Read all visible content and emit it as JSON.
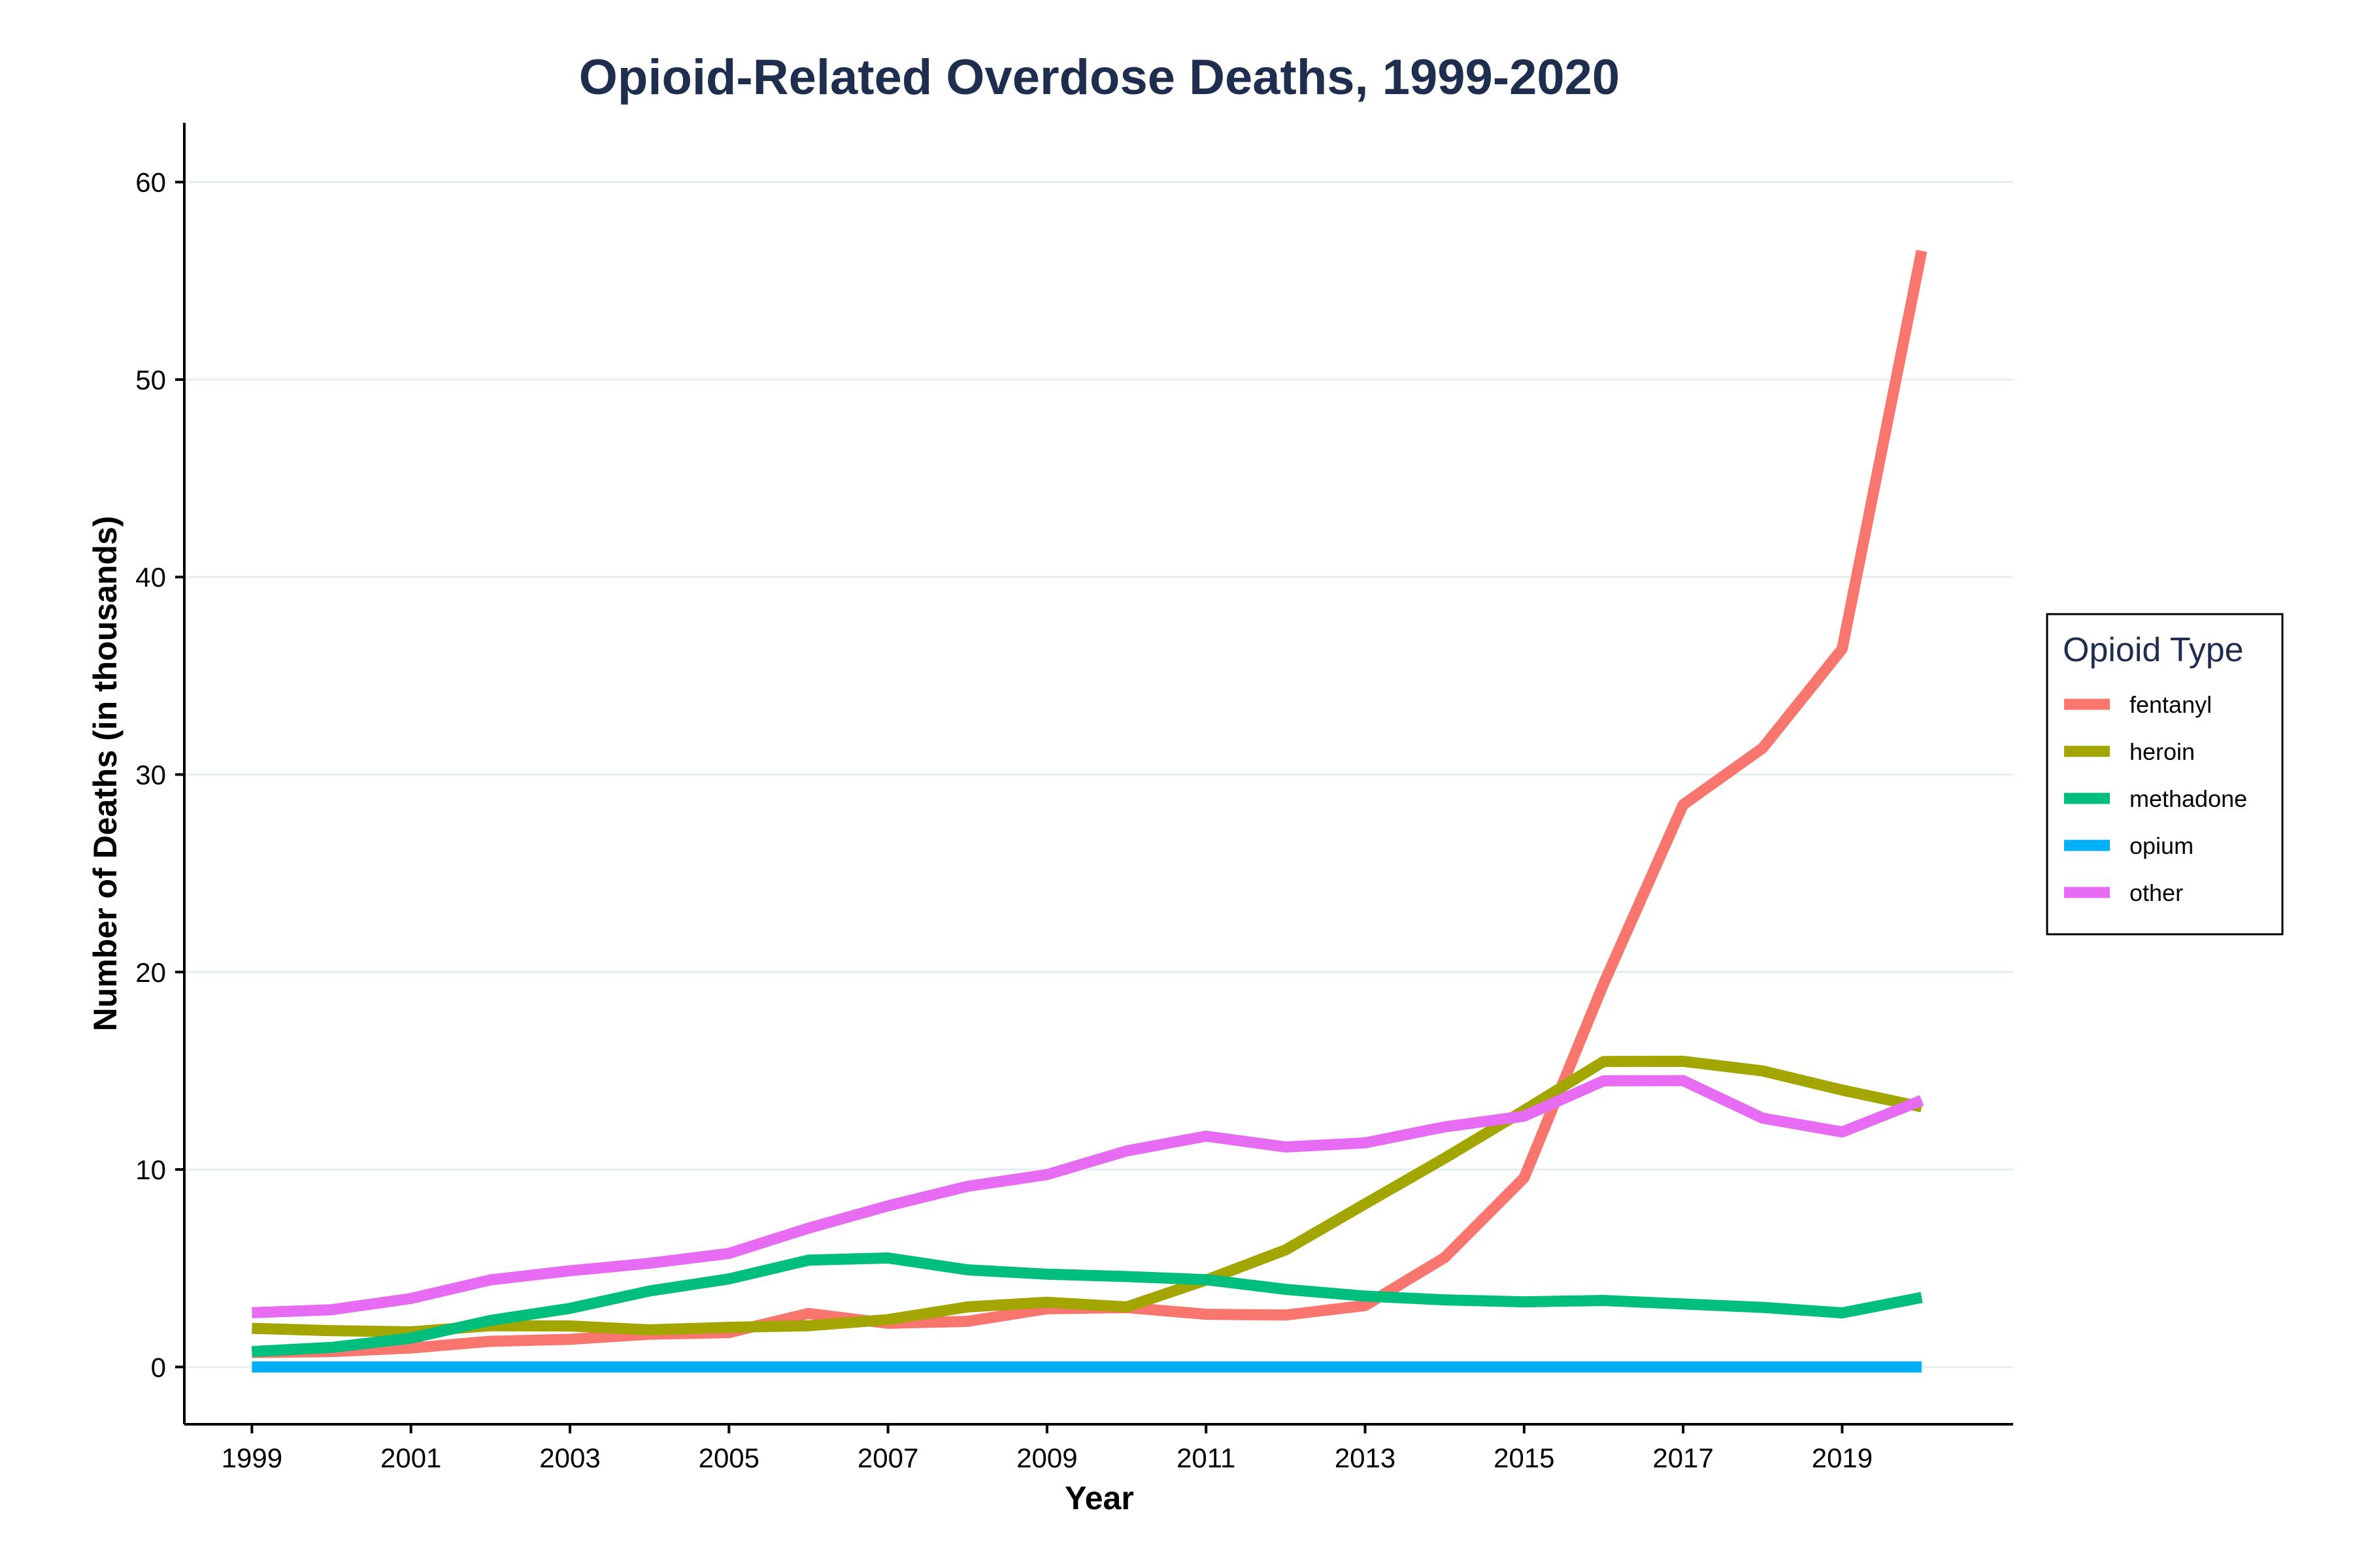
{
  "chart_data": {
    "type": "line",
    "title": "Opioid-Related Overdose Deaths, 1999-2020",
    "xlabel": "Year",
    "ylabel": "Number of Deaths (in thousands)",
    "xlim": [
      1998.15,
      2021.15
    ],
    "ylim": [
      -2.9,
      63
    ],
    "x_ticks": [
      "1999",
      "2001",
      "2003",
      "2005",
      "2007",
      "2009",
      "2011",
      "2013",
      "2015",
      "2017",
      "2019"
    ],
    "y_ticks": [
      "0",
      "10",
      "20",
      "30",
      "40",
      "50",
      "60"
    ],
    "grid": "horizontal",
    "legend": {
      "title": "Opioid Type",
      "position": "right"
    },
    "x": [
      1999,
      2000,
      2001,
      2002,
      2003,
      2004,
      2005,
      2006,
      2007,
      2008,
      2009,
      2010,
      2011,
      2012,
      2013,
      2014,
      2015,
      2016,
      2017,
      2018,
      2019,
      2020
    ],
    "series": [
      {
        "name": "fentanyl",
        "color": "#f8766d",
        "values": [
          0.73,
          0.78,
          0.96,
          1.3,
          1.4,
          1.66,
          1.74,
          2.71,
          2.21,
          2.31,
          2.95,
          3.01,
          2.67,
          2.63,
          3.11,
          5.54,
          9.58,
          19.41,
          28.47,
          31.34,
          36.36,
          56.52
        ]
      },
      {
        "name": "heroin",
        "color": "#a3a500",
        "values": [
          1.96,
          1.84,
          1.78,
          2.09,
          2.08,
          1.88,
          2.01,
          2.09,
          2.4,
          3.04,
          3.28,
          3.04,
          4.4,
          5.93,
          8.26,
          10.57,
          12.99,
          15.47,
          15.48,
          14.99,
          14.02,
          13.17
        ]
      },
      {
        "name": "methadone",
        "color": "#00bf7d",
        "values": [
          0.78,
          0.99,
          1.46,
          2.36,
          2.97,
          3.85,
          4.46,
          5.41,
          5.52,
          4.92,
          4.7,
          4.58,
          4.42,
          3.93,
          3.59,
          3.4,
          3.3,
          3.37,
          3.19,
          3.02,
          2.74,
          3.52
        ]
      },
      {
        "name": "opium",
        "color": "#00b0f6",
        "values": [
          0,
          0,
          0,
          0,
          0,
          0,
          0,
          0,
          0,
          0,
          0,
          0,
          0,
          0,
          0,
          0,
          0,
          0,
          0,
          0,
          0,
          0
        ]
      },
      {
        "name": "other",
        "color": "#e76bf3",
        "values": [
          2.75,
          2.9,
          3.47,
          4.41,
          4.87,
          5.25,
          5.75,
          7.03,
          8.16,
          9.15,
          9.74,
          10.94,
          11.69,
          11.14,
          11.35,
          12.16,
          12.7,
          14.49,
          14.5,
          12.6,
          11.9,
          13.5
        ]
      }
    ]
  }
}
